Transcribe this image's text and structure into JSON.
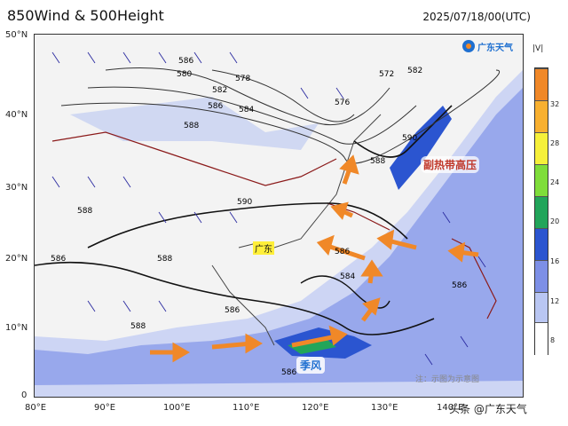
{
  "title": "850Wind & 500Height",
  "datetime": "2025/07/18/00(UTC)",
  "brand": "广东天气",
  "unit": "|V|",
  "colorbar": {
    "ticks": [
      "8",
      "12",
      "16",
      "20",
      "24",
      "28",
      "32"
    ],
    "colors": [
      "#ffffff",
      "#b9c6f2",
      "#7d8fe6",
      "#2b55d0",
      "#22a55a",
      "#7fdd3a",
      "#f6f03a",
      "#f8b030",
      "#f08828"
    ]
  },
  "axes": {
    "y_labels": [
      "50°N",
      "40°N",
      "30°N",
      "20°N",
      "10°N",
      "0"
    ],
    "x_labels": [
      "80°E",
      "90°E",
      "100°E",
      "110°E",
      "120°E",
      "130°E",
      "140°E"
    ]
  },
  "contour_labels": [
    "586",
    "580",
    "582",
    "584",
    "578",
    "576",
    "572",
    "586",
    "588",
    "590",
    "588",
    "586",
    "588",
    "586",
    "588",
    "586",
    "586",
    "584",
    "582",
    "590",
    "588",
    "586"
  ],
  "annotations": {
    "subtropical_high": "副热带高压",
    "monsoon": "季风",
    "guangdong": "广东",
    "note": "注：示图为示意图"
  },
  "watermark": "头条 @广东天气"
}
